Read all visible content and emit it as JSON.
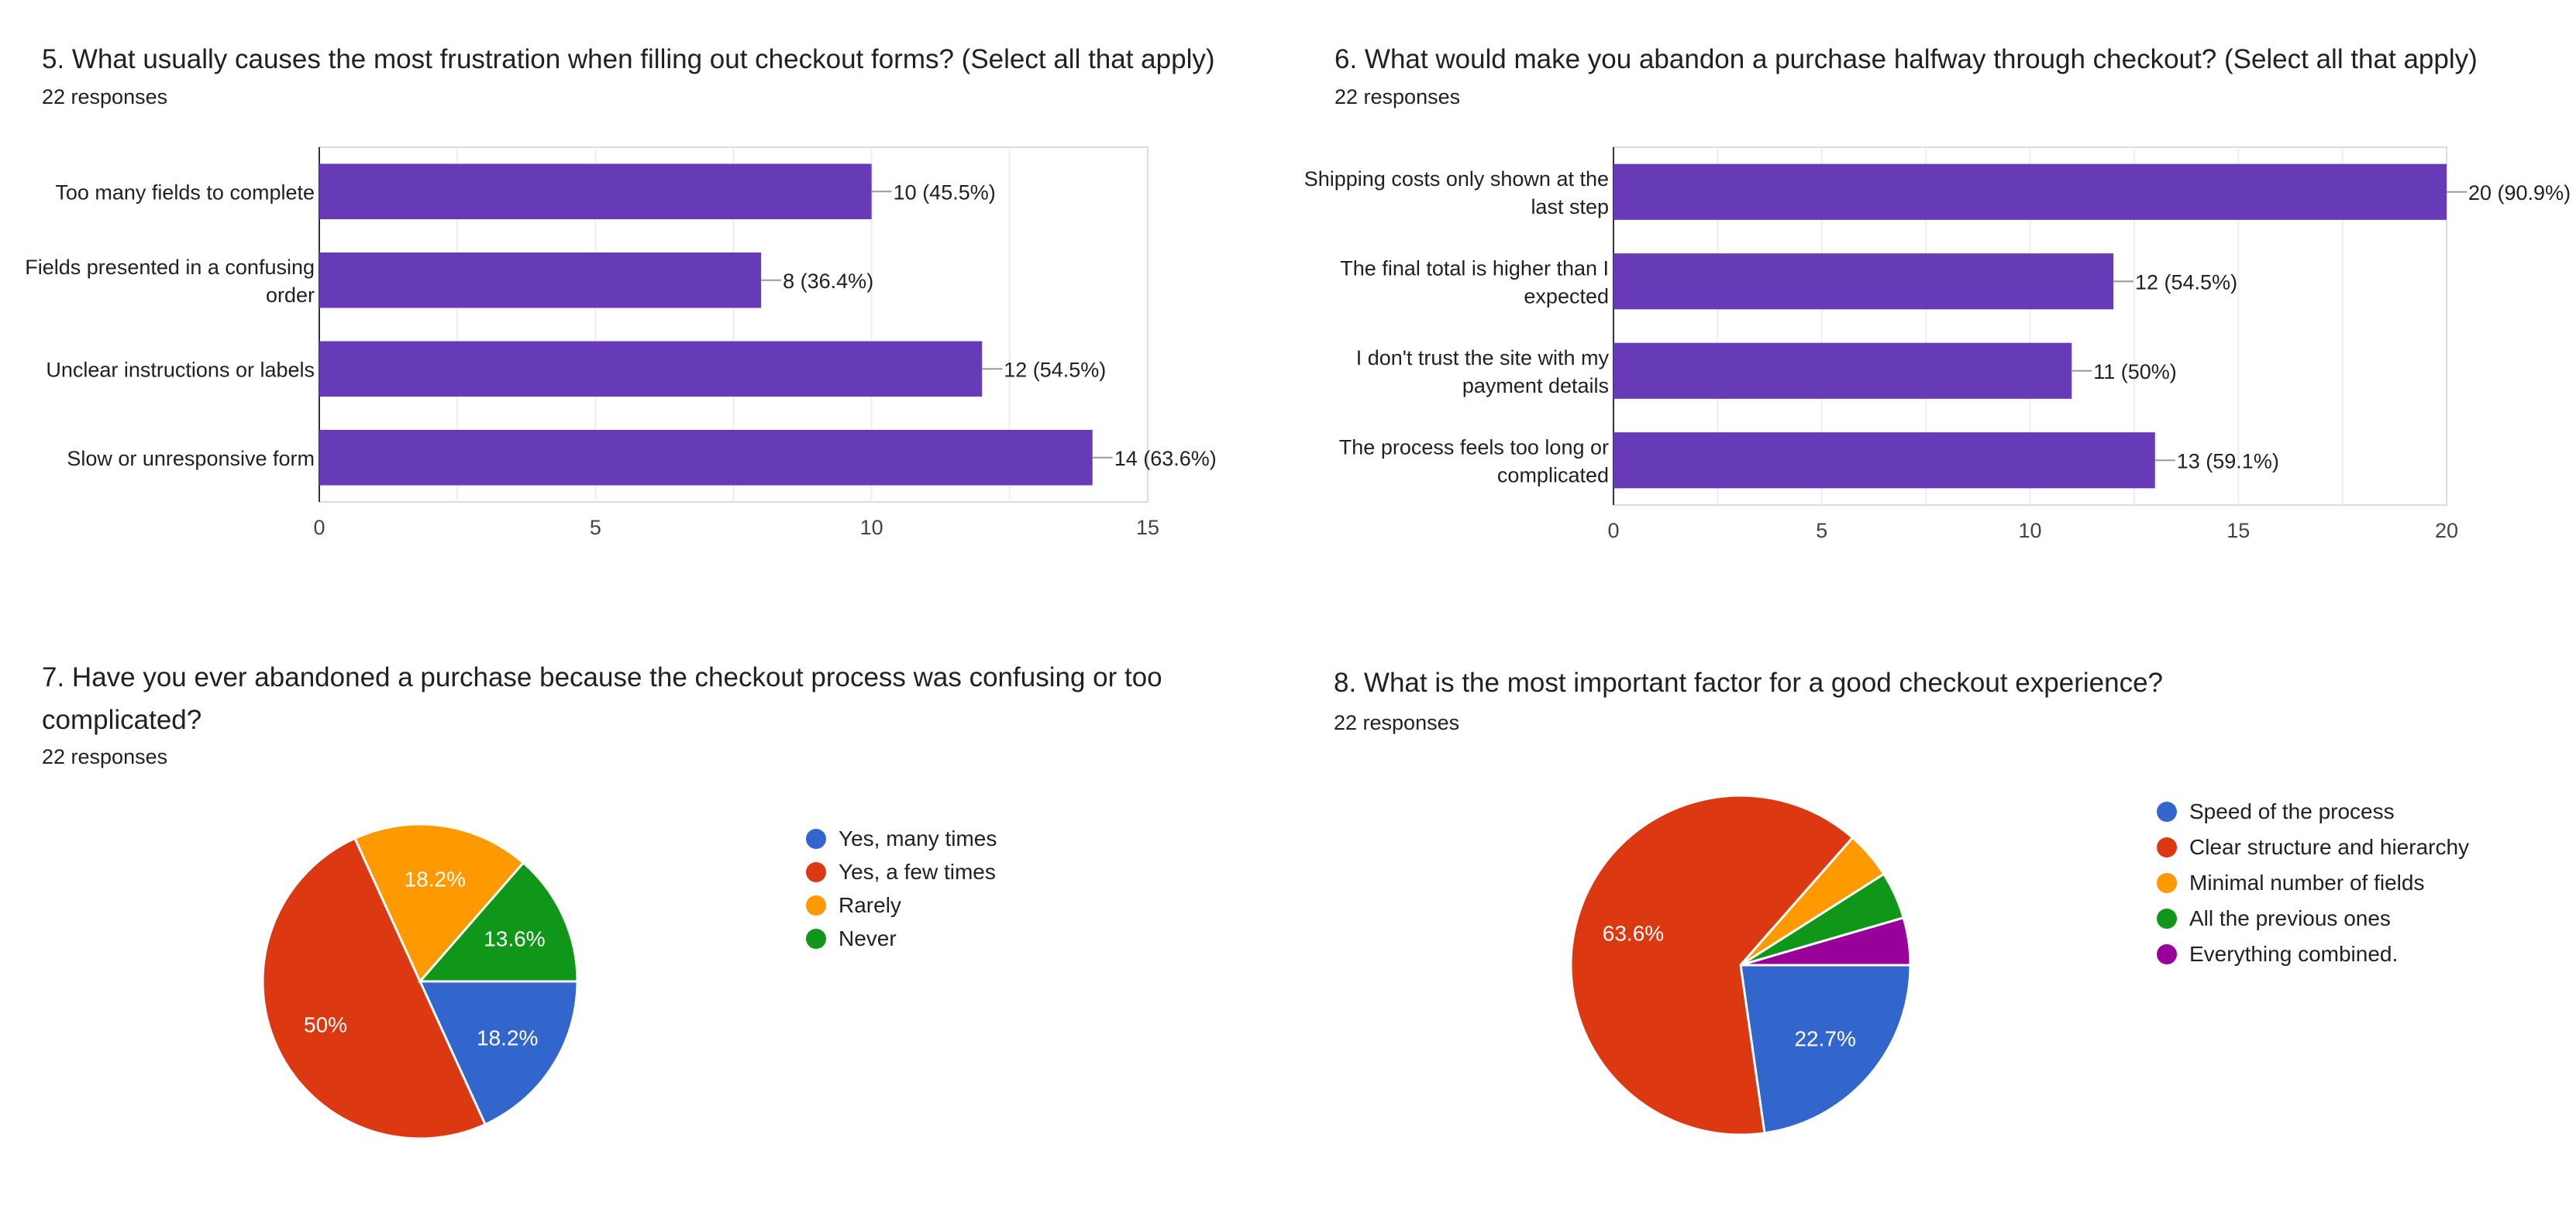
{
  "questions": {
    "q5": {
      "title": "5.  What usually causes the most frustration when filling out checkout forms? (Select all that apply)",
      "responses": "22 responses"
    },
    "q6": {
      "title": "6.  What would make you abandon a purchase halfway through checkout? (Select all that apply)",
      "responses": "22 responses"
    },
    "q7": {
      "title_line1": "7.  Have you ever abandoned a purchase because the checkout process was confusing or too",
      "title_line2": "complicated?",
      "responses": "22 responses"
    },
    "q8": {
      "title": "8.  What is the most important factor for a good checkout experience?",
      "responses": "22 responses"
    }
  },
  "colors": {
    "bar": "#673ab7",
    "blue": "#3366cc",
    "red": "#dc3912",
    "orange": "#ff9900",
    "green": "#109618",
    "purple": "#990099"
  },
  "chart_data": [
    {
      "id": "q5",
      "type": "bar",
      "orientation": "horizontal",
      "categories": [
        [
          "Too many fields to complete"
        ],
        [
          "Fields presented in a confusing",
          "order"
        ],
        [
          "Unclear instructions or labels"
        ],
        [
          "Slow or unresponsive form"
        ]
      ],
      "values": [
        10,
        8,
        12,
        14
      ],
      "data_labels": [
        "10 (45.5%)",
        "8 (36.4%)",
        "12 (54.5%)",
        "14 (63.6%)"
      ],
      "xlim": [
        0,
        15
      ],
      "ticks": [
        0,
        5,
        10,
        15
      ],
      "grid": true,
      "color": "#673ab7"
    },
    {
      "id": "q6",
      "type": "bar",
      "orientation": "horizontal",
      "categories": [
        [
          "Shipping costs only shown at the",
          "last step"
        ],
        [
          "The final total is higher than I",
          "expected"
        ],
        [
          "I don't trust the site with my",
          "payment details"
        ],
        [
          "The process feels too long or",
          "complicated"
        ]
      ],
      "values": [
        20,
        12,
        11,
        13
      ],
      "data_labels": [
        "20 (90.9%)",
        "12 (54.5%)",
        "11 (50%)",
        "13 (59.1%)"
      ],
      "xlim": [
        0,
        20
      ],
      "ticks": [
        0,
        5,
        10,
        15,
        20
      ],
      "grid": true,
      "color": "#673ab7"
    },
    {
      "id": "q7",
      "type": "pie",
      "labels": [
        "Yes, many times",
        "Yes, a few times",
        "Rarely",
        "Never"
      ],
      "values": [
        18.2,
        50,
        18.2,
        13.6
      ],
      "slice_labels": [
        "18.2%",
        "50%",
        "18.2%",
        "13.6%"
      ],
      "colors": [
        "#3366cc",
        "#dc3912",
        "#ff9900",
        "#109618"
      ],
      "legend": "right"
    },
    {
      "id": "q8",
      "type": "pie",
      "labels": [
        "Speed of the process",
        "Clear structure and hierarchy",
        "Minimal number of fields",
        "All the previous ones",
        "Everything combined."
      ],
      "values": [
        22.7,
        63.6,
        4.5,
        4.5,
        4.5
      ],
      "slice_labels": [
        "22.7%",
        "63.6%",
        "",
        "",
        ""
      ],
      "colors": [
        "#3366cc",
        "#dc3912",
        "#ff9900",
        "#109618",
        "#990099"
      ],
      "legend": "right"
    }
  ]
}
